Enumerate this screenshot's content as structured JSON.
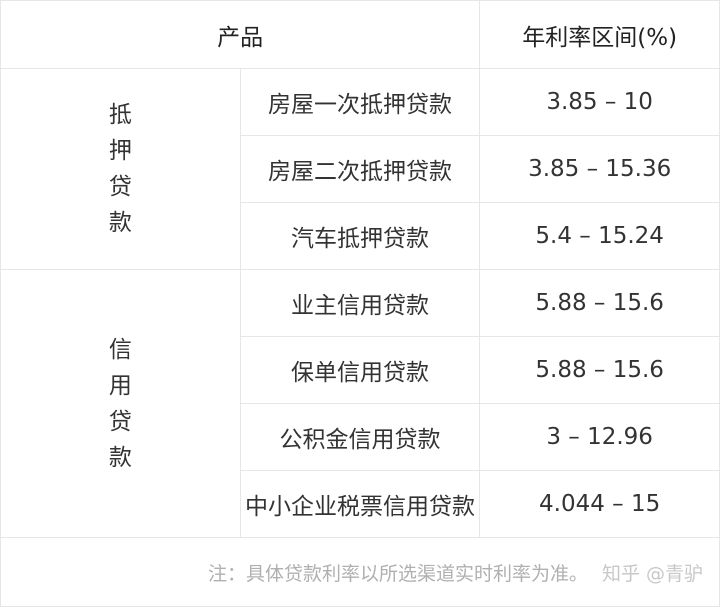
{
  "table": {
    "header": [
      "产品",
      "年利率区间(%)"
    ],
    "groups": [
      {
        "name": "抵押贷款",
        "rows": [
          [
            "房屋一次抵押贷款",
            "3.85 – 10"
          ],
          [
            "房屋二次抵押贷款",
            "3.85 – 15.36"
          ],
          [
            "汽车抵押贷款",
            "5.4 – 15.24"
          ]
        ]
      },
      {
        "name": "信用贷款",
        "rows": [
          [
            "业主信用贷款",
            "5.88 – 15.6"
          ],
          [
            "保单信用贷款",
            "5.88 – 15.6"
          ],
          [
            "公积金信用贷款",
            "3 – 12.96"
          ],
          [
            "中小企业税票信用贷款",
            "4.044 – 15"
          ]
        ]
      }
    ]
  },
  "footer": {
    "note": "注：具体贷款利率以所选渠道实时利率为准。",
    "watermark": "知乎 @青驴"
  }
}
